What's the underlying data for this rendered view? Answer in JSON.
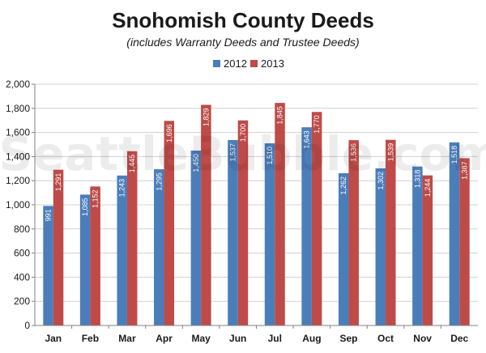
{
  "chart_data": {
    "type": "bar",
    "title": "Snohomish County Deeds",
    "subtitle": "(includes Warranty Deeds and Trustee Deeds)",
    "categories": [
      "Jan",
      "Feb",
      "Mar",
      "Apr",
      "May",
      "Jun",
      "Jul",
      "Aug",
      "Sep",
      "Oct",
      "Nov",
      "Dec"
    ],
    "series": [
      {
        "name": "2012",
        "color": "#4a7ebb",
        "values": [
          991,
          1085,
          1243,
          1295,
          1450,
          1537,
          1510,
          1643,
          1262,
          1302,
          1318,
          1518
        ]
      },
      {
        "name": "2013",
        "color": "#be4b48",
        "values": [
          1291,
          1152,
          1445,
          1696,
          1829,
          1700,
          1845,
          1770,
          1536,
          1539,
          1244,
          1387
        ]
      }
    ],
    "ylim": [
      0,
      2000
    ],
    "yticks": [
      0,
      200,
      400,
      600,
      800,
      1000,
      1200,
      1400,
      1600,
      1800,
      2000
    ],
    "ytick_labels": [
      "0",
      "200",
      "400",
      "600",
      "800",
      "1,000",
      "1,200",
      "1,400",
      "1,600",
      "1,800",
      "2,000"
    ],
    "grid": true,
    "legend_position": "top-center",
    "watermark": "SeattleBubble.com"
  }
}
